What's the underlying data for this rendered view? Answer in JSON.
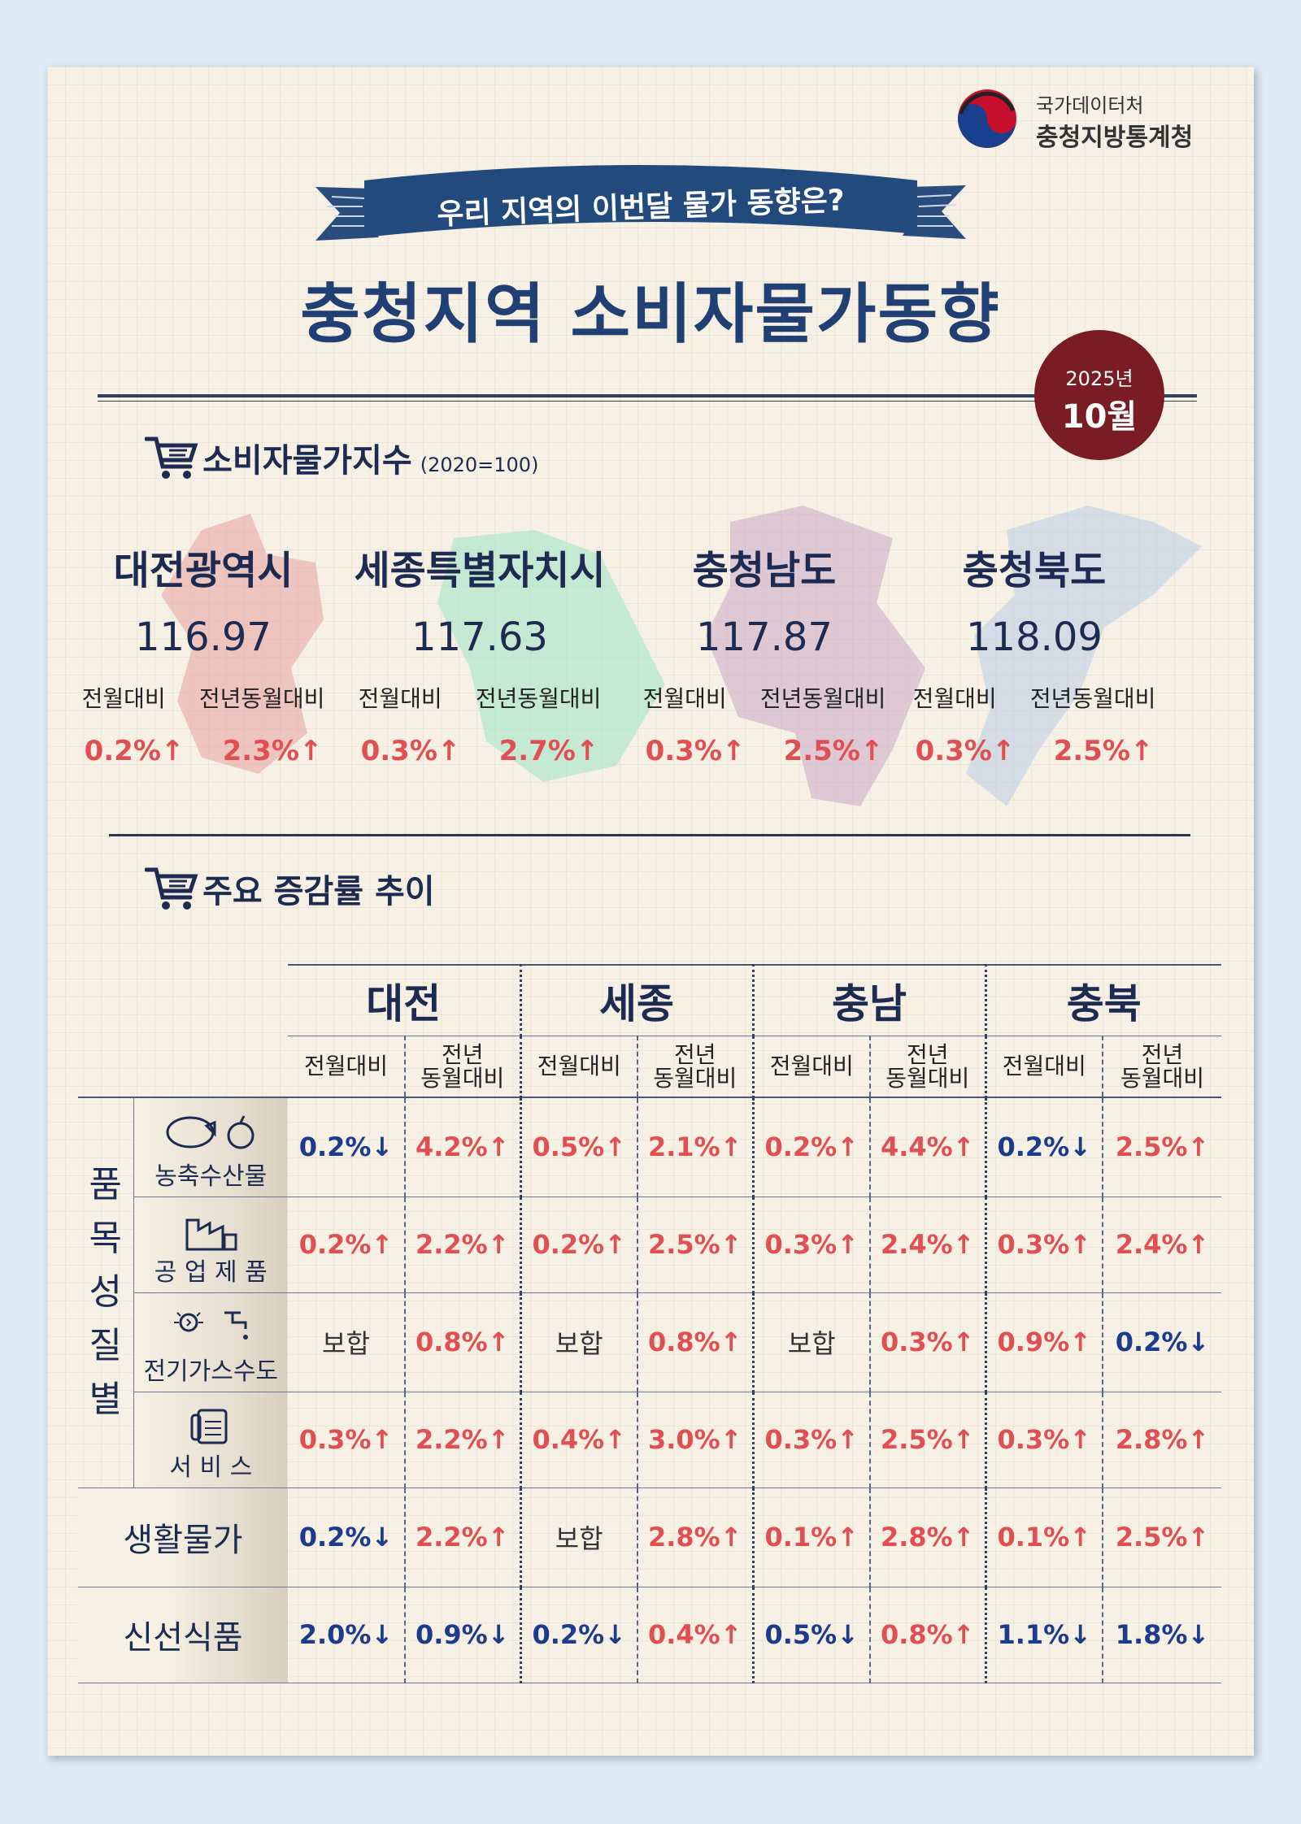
{
  "logo": {
    "top": "국가데이터처",
    "bottom": "충청지방통계청"
  },
  "ribbon_text": "우리 지역의 이번달 물가 동향은?",
  "title": "충청지역 소비자물가동향",
  "date": {
    "year": "2025년",
    "month": "10월"
  },
  "section1": {
    "title": "소비자물가지수",
    "base": "(2020=100)"
  },
  "cities": [
    {
      "name": "대전광역시",
      "index": "116.97",
      "mom_label": "전월대비",
      "yoy_label": "전년동월대비",
      "mom": "0.2%↑",
      "yoy": "2.3%↑"
    },
    {
      "name": "세종특별자치시",
      "index": "117.63",
      "mom_label": "전월대비",
      "yoy_label": "전년동월대비",
      "mom": "0.3%↑",
      "yoy": "2.7%↑"
    },
    {
      "name": "충청남도",
      "index": "117.87",
      "mom_label": "전월대비",
      "yoy_label": "전년동월대비",
      "mom": "0.3%↑",
      "yoy": "2.5%↑"
    },
    {
      "name": "충청북도",
      "index": "118.09",
      "mom_label": "전월대비",
      "yoy_label": "전년동월대비",
      "mom": "0.3%↑",
      "yoy": "2.5%↑"
    }
  ],
  "section2": {
    "title": "주요 증감률 추이"
  },
  "table": {
    "regions": [
      "대전",
      "세종",
      "충남",
      "충북"
    ],
    "mom_label": "전월대비",
    "yoy_label_1": "전년",
    "yoy_label_2": "동월대비",
    "category_chars": [
      "품",
      "목",
      "성",
      "질",
      "별"
    ],
    "rows": [
      {
        "label": "농축수산물",
        "values": [
          "0.2%↓",
          "4.2%↑",
          "0.5%↑",
          "2.1%↑",
          "0.2%↑",
          "4.4%↑",
          "0.2%↓",
          "2.5%↑"
        ]
      },
      {
        "label": "공 업 제 품",
        "values": [
          "0.2%↑",
          "2.2%↑",
          "0.2%↑",
          "2.5%↑",
          "0.3%↑",
          "2.4%↑",
          "0.3%↑",
          "2.4%↑"
        ]
      },
      {
        "label": "전기가스수도",
        "values": [
          "보합",
          "0.8%↑",
          "보합",
          "0.8%↑",
          "보합",
          "0.3%↑",
          "0.9%↑",
          "0.2%↓"
        ]
      },
      {
        "label": "서 비 스",
        "values": [
          "0.3%↑",
          "2.2%↑",
          "0.4%↑",
          "3.0%↑",
          "0.3%↑",
          "2.5%↑",
          "0.3%↑",
          "2.8%↑"
        ]
      },
      {
        "label": "생활물가",
        "values": [
          "0.2%↓",
          "2.2%↑",
          "보합",
          "2.8%↑",
          "0.1%↑",
          "2.8%↑",
          "0.1%↑",
          "2.5%↑"
        ]
      },
      {
        "label": "신선식품",
        "values": [
          "2.0%↓",
          "0.9%↓",
          "0.2%↓",
          "0.4%↑",
          "0.5%↓",
          "0.8%↑",
          "1.1%↓",
          "1.8%↓"
        ]
      }
    ]
  },
  "colors": {
    "up": "#e24f52",
    "down": "#1d3b8c",
    "title": "#203f73",
    "badge": "#7a1c24"
  }
}
